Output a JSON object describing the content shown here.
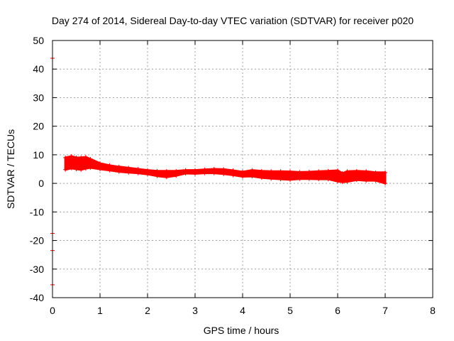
{
  "chart_data": {
    "type": "scatter",
    "title": "Day 274 of 2014, Sidereal Day-to-day VTEC variation (SDTVAR) for receiver p020",
    "xlabel": "GPS time / hours",
    "ylabel": "SDTVAR / TECUs",
    "xlim": [
      0,
      8
    ],
    "ylim": [
      -40,
      50
    ],
    "x_ticks": [
      "0",
      "1",
      "2",
      "3",
      "4",
      "5",
      "6",
      "7",
      "8"
    ],
    "y_ticks": [
      "-40",
      "-30",
      "-20",
      "-10",
      "0",
      "10",
      "20",
      "30",
      "40",
      "50"
    ],
    "grid": true,
    "marker": "plus",
    "color": "#ff0000",
    "outliers": [
      {
        "x": 0.0,
        "y": 43.8
      },
      {
        "x": 0.0,
        "y": -17.5
      },
      {
        "x": 0.0,
        "y": -23.5
      },
      {
        "x": 0.0,
        "y": -35.5
      }
    ],
    "band": {
      "x": [
        0.27,
        0.4,
        0.5,
        0.6,
        0.7,
        0.8,
        1.0,
        1.2,
        1.4,
        1.6,
        1.8,
        2.0,
        2.2,
        2.4,
        2.6,
        2.8,
        3.0,
        3.2,
        3.4,
        3.6,
        3.8,
        4.0,
        4.2,
        4.4,
        4.6,
        4.8,
        5.0,
        5.2,
        5.4,
        5.6,
        5.8,
        6.0,
        6.1,
        6.2,
        6.4,
        6.6,
        6.8,
        7.0
      ],
      "upper": [
        9.0,
        9.5,
        9.0,
        9.0,
        9.2,
        8.5,
        7.0,
        6.3,
        5.8,
        5.4,
        5.0,
        4.6,
        4.3,
        4.3,
        4.3,
        4.6,
        4.6,
        4.8,
        5.0,
        4.9,
        4.5,
        4.0,
        4.6,
        4.3,
        4.2,
        4.2,
        4.1,
        3.9,
        4.0,
        4.2,
        4.3,
        4.5,
        3.5,
        4.2,
        4.3,
        4.2,
        3.8,
        3.8
      ],
      "lower": [
        4.8,
        5.3,
        5.0,
        4.8,
        5.2,
        5.5,
        5.0,
        4.6,
        4.1,
        3.8,
        3.6,
        3.2,
        2.6,
        2.2,
        2.7,
        3.5,
        3.4,
        3.6,
        3.6,
        3.3,
        2.9,
        2.4,
        2.5,
        2.0,
        1.7,
        1.5,
        1.3,
        1.6,
        1.6,
        1.5,
        1.5,
        0.7,
        0.5,
        0.6,
        1.2,
        1.0,
        1.0,
        0.0
      ]
    }
  }
}
